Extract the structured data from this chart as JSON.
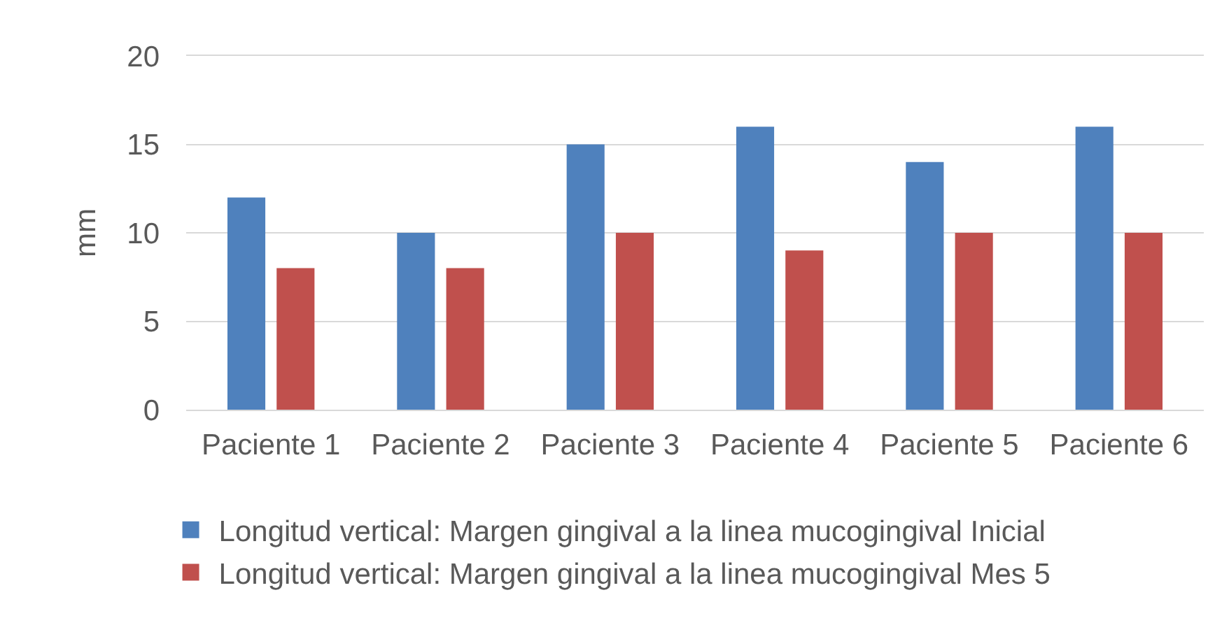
{
  "chart_data": {
    "type": "bar",
    "ylabel": "mm",
    "categories": [
      "Paciente 1",
      "Paciente 2",
      "Paciente 3",
      "Paciente 4",
      "Paciente 5",
      "Paciente 6"
    ],
    "series": [
      {
        "name": "Longitud vertical: Margen gingival a la linea mucogingival Inicial",
        "color": "#4f81bd",
        "values": [
          12,
          10,
          15,
          16,
          14,
          16
        ]
      },
      {
        "name": "Longitud vertical: Margen gingival a la linea mucogingival Mes 5",
        "color": "#c0504d",
        "values": [
          8,
          8,
          10,
          9,
          10,
          10
        ]
      }
    ],
    "ylim": [
      0,
      20
    ],
    "yticks": [
      0,
      5,
      10,
      15,
      20
    ],
    "grid": "y",
    "legend": "bottom"
  }
}
